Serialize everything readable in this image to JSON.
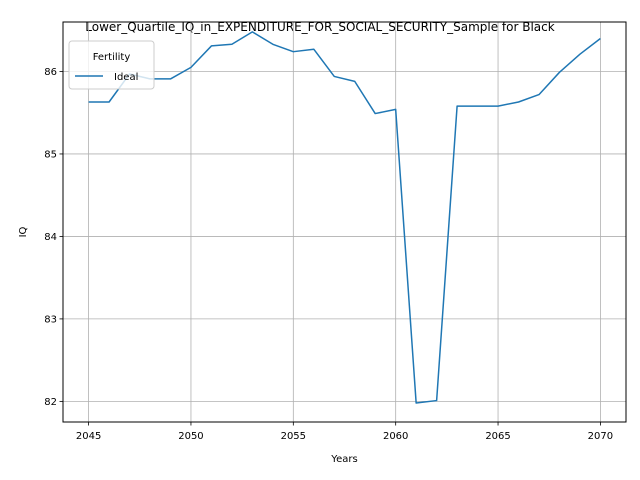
{
  "chart_data": {
    "type": "line",
    "title": "Lower_Quartile_IQ_in_EXPENDITURE_FOR_SOCIAL_SECURITY_Sample for Black",
    "xlabel": "Years",
    "ylabel": "IQ",
    "xlim": [
      2043.75,
      2071.25
    ],
    "ylim": [
      81.75,
      86.6
    ],
    "x_ticks": [
      2045,
      2050,
      2055,
      2060,
      2065,
      2070
    ],
    "y_ticks": [
      82,
      83,
      84,
      85,
      86
    ],
    "grid": true,
    "legend": {
      "title": "Fertility",
      "placement": "top-left"
    },
    "series": [
      {
        "name": "Ideal",
        "color": "#1f77b4",
        "x": [
          2045,
          2046,
          2047,
          2048,
          2049,
          2050,
          2051,
          2052,
          2053,
          2054,
          2055,
          2056,
          2057,
          2058,
          2059,
          2060,
          2061,
          2062,
          2063,
          2064,
          2065,
          2066,
          2067,
          2068,
          2069,
          2070
        ],
        "y": [
          85.63,
          85.63,
          85.97,
          85.91,
          85.91,
          86.05,
          86.31,
          86.33,
          86.48,
          86.33,
          86.24,
          86.27,
          85.94,
          85.88,
          85.49,
          85.54,
          81.98,
          82.01,
          85.58,
          85.58,
          85.58,
          85.63,
          85.72,
          85.99,
          86.21,
          86.4
        ]
      }
    ]
  }
}
